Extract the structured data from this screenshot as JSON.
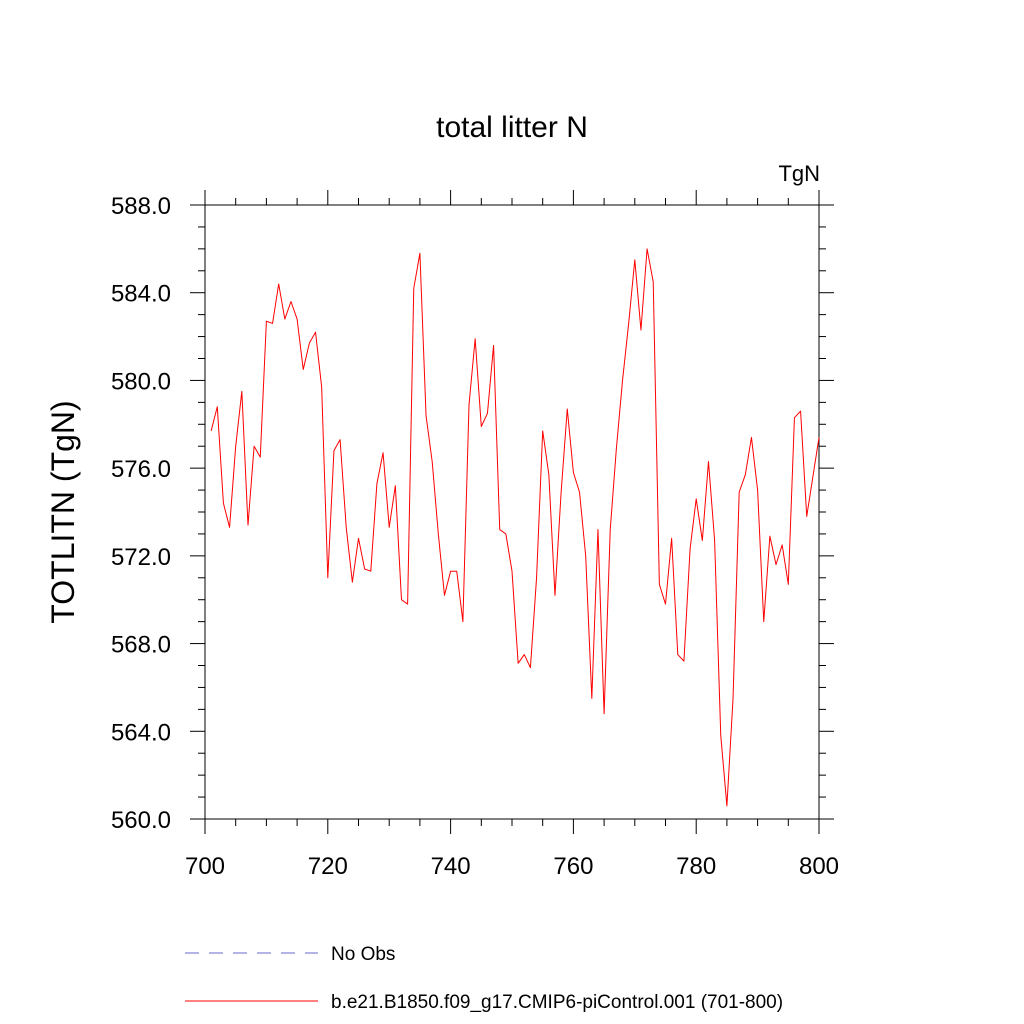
{
  "chart_data": {
    "type": "line",
    "title": "total litter N",
    "units_label": "TgN",
    "ylabel": "TOTLITN  (TgN)",
    "xlabel": "",
    "xlim": [
      700,
      800
    ],
    "ylim": [
      560,
      588
    ],
    "x_ticks": [
      "700",
      "720",
      "740",
      "760",
      "780",
      "800"
    ],
    "y_ticks": [
      "560.0",
      "564.0",
      "568.0",
      "572.0",
      "576.0",
      "580.0",
      "584.0",
      "588.0"
    ],
    "grid": false,
    "legend_position": "bottom",
    "series": [
      {
        "name": "No Obs",
        "color": "#6a6ac8",
        "dash": true,
        "x": [],
        "values": []
      },
      {
        "name": "b.e21.B1850.f09_g17.CMIP6-piControl.001 (701-800)",
        "color": "#ff0000",
        "dash": false,
        "x": [
          701,
          702,
          703,
          704,
          705,
          706,
          707,
          708,
          709,
          710,
          711,
          712,
          713,
          714,
          715,
          716,
          717,
          718,
          719,
          720,
          721,
          722,
          723,
          724,
          725,
          726,
          727,
          728,
          729,
          730,
          731,
          732,
          733,
          734,
          735,
          736,
          737,
          738,
          739,
          740,
          741,
          742,
          743,
          744,
          745,
          746,
          747,
          748,
          749,
          750,
          751,
          752,
          753,
          754,
          755,
          756,
          757,
          758,
          759,
          760,
          761,
          762,
          763,
          764,
          765,
          766,
          767,
          768,
          769,
          770,
          771,
          772,
          773,
          774,
          775,
          776,
          777,
          778,
          779,
          780,
          781,
          782,
          783,
          784,
          785,
          786,
          787,
          788,
          789,
          790,
          791,
          792,
          793,
          794,
          795,
          796,
          797,
          798,
          799,
          800
        ],
        "values": [
          577.7,
          578.8,
          574.4,
          573.3,
          577.0,
          579.5,
          573.4,
          577.0,
          576.5,
          582.7,
          582.6,
          584.4,
          582.8,
          583.6,
          582.8,
          580.5,
          581.7,
          582.2,
          579.7,
          571.0,
          576.8,
          577.3,
          573.3,
          570.8,
          572.8,
          571.4,
          571.3,
          575.3,
          576.7,
          573.3,
          575.2,
          570.0,
          569.8,
          584.2,
          585.8,
          578.4,
          576.3,
          573.0,
          570.2,
          571.3,
          571.3,
          569.0,
          578.9,
          581.9,
          577.9,
          578.5,
          581.6,
          573.2,
          573.0,
          571.3,
          567.1,
          567.5,
          566.9,
          571.0,
          577.7,
          575.7,
          570.2,
          574.9,
          578.7,
          575.8,
          574.9,
          572.0,
          565.5,
          573.2,
          564.8,
          573.2,
          576.9,
          580.0,
          582.6,
          585.5,
          582.3,
          586.0,
          584.5,
          570.7,
          569.8,
          572.8,
          567.5,
          567.2,
          572.3,
          574.6,
          572.7,
          576.3,
          572.7,
          563.8,
          560.6,
          565.5,
          574.9,
          575.7,
          577.4,
          575.0,
          569.0,
          572.9,
          571.6,
          572.5,
          570.7,
          578.3,
          578.6,
          573.8,
          575.6,
          577.4
        ]
      }
    ]
  }
}
